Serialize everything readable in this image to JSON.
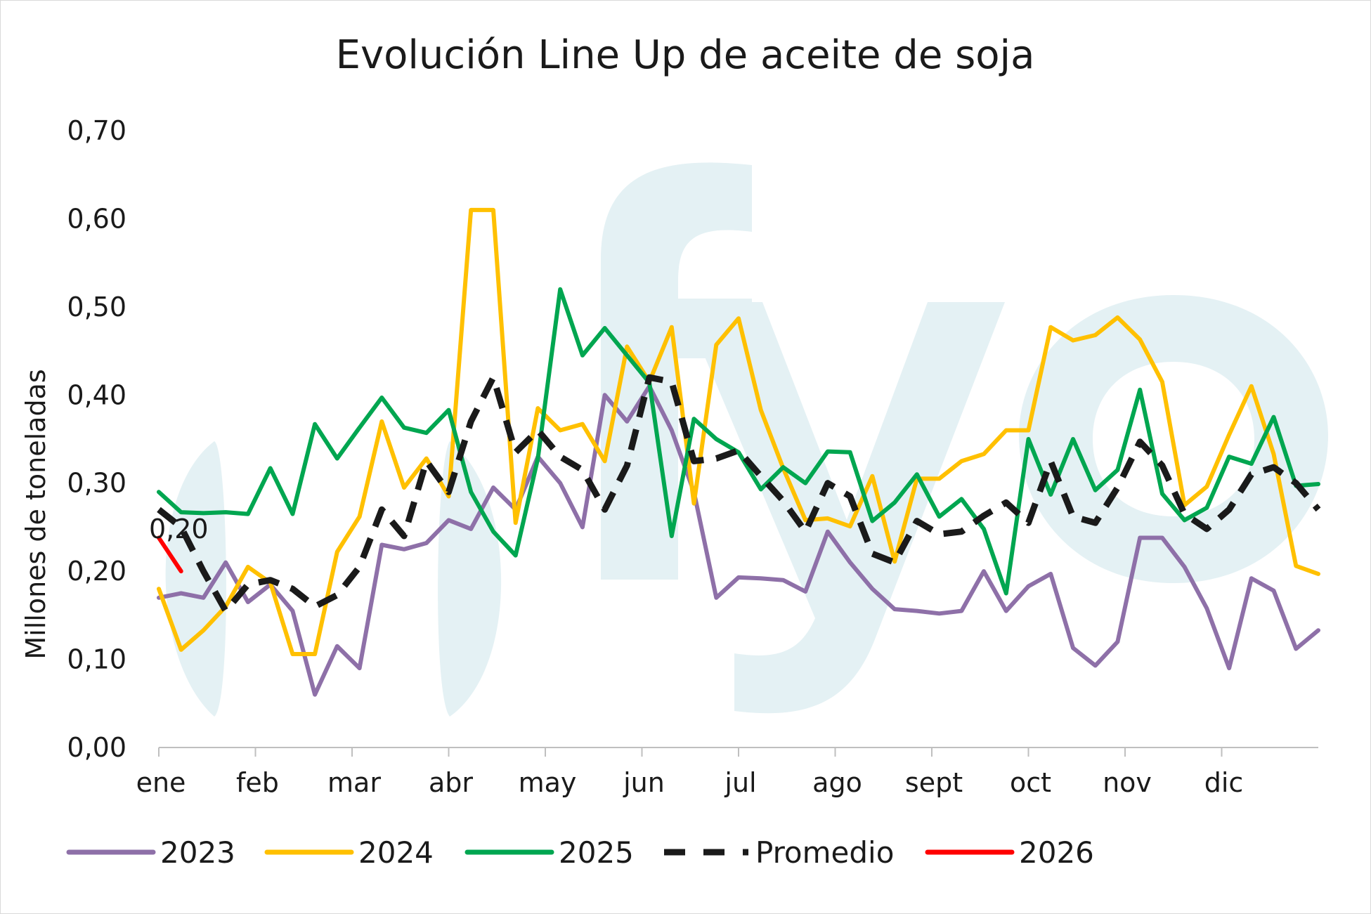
{
  "chart_data": {
    "type": "line",
    "title": "Evolución Line Up de aceite de soja",
    "ylabel": "Millones de toneladas",
    "xlabel": "",
    "ylim": [
      0,
      0.7
    ],
    "yticks": [
      "0,00",
      "0,10",
      "0,20",
      "0,30",
      "0,40",
      "0,50",
      "0,60",
      "0,70"
    ],
    "months": [
      "ene",
      "feb",
      "mar",
      "abr",
      "may",
      "jun",
      "jul",
      "ago",
      "sept",
      "oct",
      "nov",
      "dic"
    ],
    "weeks": 53,
    "watermark": "fyo",
    "series": [
      {
        "name": "2023",
        "color": "#8e70a8",
        "dash": false,
        "values": [
          0.17,
          0.175,
          0.17,
          0.21,
          0.165,
          0.185,
          0.155,
          0.06,
          0.115,
          0.09,
          0.23,
          0.225,
          0.232,
          0.258,
          0.248,
          0.295,
          0.27,
          0.33,
          0.3,
          0.25,
          0.4,
          0.37,
          0.41,
          0.36,
          0.29,
          0.17,
          0.193,
          0.192,
          0.19,
          0.177,
          0.245,
          0.21,
          0.18,
          0.157,
          0.155,
          0.152,
          0.155,
          0.2,
          0.155,
          0.183,
          0.197,
          0.113,
          0.093,
          0.12,
          0.238,
          0.238,
          0.205,
          0.158,
          0.09,
          0.192,
          0.178,
          0.112,
          0.133
        ]
      },
      {
        "name": "2024",
        "color": "#ffc000",
        "dash": false,
        "values": [
          0.18,
          0.111,
          0.133,
          0.16,
          0.205,
          0.187,
          0.106,
          0.106,
          0.222,
          0.262,
          0.37,
          0.295,
          0.328,
          0.285,
          0.61,
          0.61,
          0.255,
          0.385,
          0.36,
          0.367,
          0.325,
          0.455,
          0.415,
          0.477,
          0.277,
          0.457,
          0.487,
          0.383,
          0.317,
          0.258,
          0.26,
          0.251,
          0.308,
          0.211,
          0.305,
          0.305,
          0.325,
          0.333,
          0.36,
          0.36,
          0.477,
          0.462,
          0.468,
          0.488,
          0.463,
          0.415,
          0.275,
          0.296,
          0.355,
          0.41,
          0.333,
          0.206,
          0.197
        ]
      },
      {
        "name": "2025",
        "color": "#00a650",
        "dash": false,
        "values": [
          0.29,
          0.267,
          0.266,
          0.267,
          0.265,
          0.317,
          0.265,
          0.367,
          0.328,
          0.363,
          0.397,
          0.363,
          0.357,
          0.383,
          0.29,
          0.245,
          0.218,
          0.328,
          0.52,
          0.445,
          0.476,
          0.445,
          0.414,
          0.24,
          0.373,
          0.35,
          0.335,
          0.293,
          0.318,
          0.3,
          0.336,
          0.335,
          0.257,
          0.278,
          0.31,
          0.262,
          0.282,
          0.248,
          0.175,
          0.35,
          0.287,
          0.35,
          0.292,
          0.315,
          0.406,
          0.288,
          0.258,
          0.272,
          0.33,
          0.322,
          0.375,
          0.297,
          0.299
        ]
      },
      {
        "name": "Promedio",
        "color": "#1a1a1a",
        "dash": true,
        "values": [
          0.27,
          0.25,
          0.2,
          0.155,
          0.185,
          0.19,
          0.18,
          0.16,
          0.173,
          0.205,
          0.27,
          0.24,
          0.325,
          0.29,
          0.37,
          0.42,
          0.335,
          0.36,
          0.33,
          0.315,
          0.27,
          0.32,
          0.42,
          0.415,
          0.325,
          0.328,
          0.337,
          0.308,
          0.28,
          0.245,
          0.3,
          0.285,
          0.22,
          0.21,
          0.257,
          0.242,
          0.245,
          0.263,
          0.278,
          0.255,
          0.325,
          0.262,
          0.255,
          0.295,
          0.347,
          0.32,
          0.265,
          0.248,
          0.27,
          0.31,
          0.318,
          0.3,
          0.27
        ]
      },
      {
        "name": "2026",
        "color": "#ff0000",
        "dash": false,
        "values": [
          0.238,
          0.2
        ],
        "label": "0,20"
      }
    ]
  }
}
